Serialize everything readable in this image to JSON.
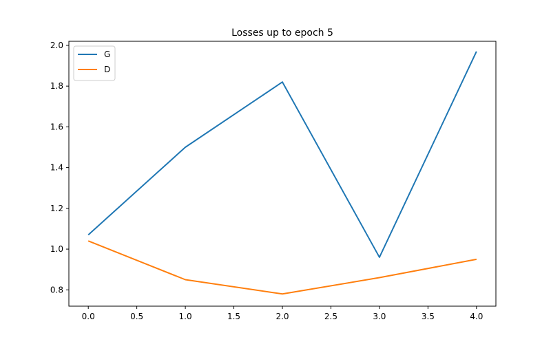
{
  "chart_data": {
    "type": "line",
    "title": "Losses up to epoch 5",
    "xlabel": "",
    "ylabel": "",
    "x": [
      0,
      1,
      2,
      3,
      4
    ],
    "xlim": [
      -0.2,
      4.2
    ],
    "ylim": [
      0.72,
      2.02
    ],
    "xticks": [
      0.0,
      0.5,
      1.0,
      1.5,
      2.0,
      2.5,
      3.0,
      3.5,
      4.0
    ],
    "xtick_labels": [
      "0.0",
      "0.5",
      "1.0",
      "1.5",
      "2.0",
      "2.5",
      "3.0",
      "3.5",
      "4.0"
    ],
    "yticks": [
      0.8,
      1.0,
      1.2,
      1.4,
      1.6,
      1.8,
      2.0
    ],
    "ytick_labels": [
      "0.8",
      "1.0",
      "1.2",
      "1.4",
      "1.6",
      "1.8",
      "2.0"
    ],
    "grid": false,
    "legend_position": "upper-left",
    "series": [
      {
        "name": "G",
        "color": "#1f77b4",
        "values": [
          1.07,
          1.5,
          1.82,
          0.96,
          1.97
        ]
      },
      {
        "name": "D",
        "color": "#ff7f0e",
        "values": [
          1.04,
          0.85,
          0.78,
          0.86,
          0.95
        ]
      }
    ]
  }
}
